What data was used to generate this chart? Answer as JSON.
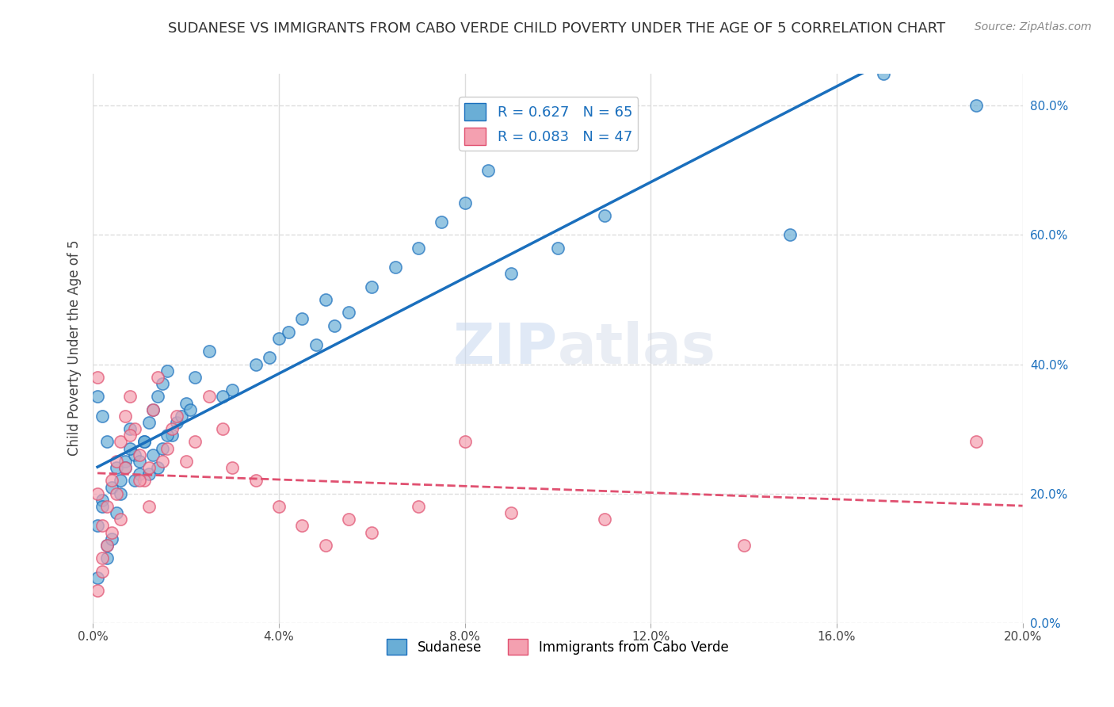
{
  "title": "SUDANESE VS IMMIGRANTS FROM CABO VERDE CHILD POVERTY UNDER THE AGE OF 5 CORRELATION CHART",
  "source": "Source: ZipAtlas.com",
  "ylabel": "Child Poverty Under the Age of 5",
  "xlim": [
    0,
    0.2
  ],
  "ylim": [
    0,
    0.85
  ],
  "xticks": [
    0.0,
    0.04,
    0.08,
    0.12,
    0.16,
    0.2
  ],
  "yticks_right": [
    0.0,
    0.2,
    0.4,
    0.6,
    0.8
  ],
  "sudanese_R": 0.627,
  "sudanese_N": 65,
  "caboverde_R": 0.083,
  "caboverde_N": 47,
  "blue_color": "#6aaed6",
  "pink_color": "#f4a0b0",
  "blue_line_color": "#1a6fbd",
  "pink_line_color": "#e05070",
  "watermark_zip": "ZIP",
  "watermark_atlas": "atlas",
  "background_color": "#ffffff",
  "grid_color": "#dddddd",
  "sudanese_x": [
    0.001,
    0.002,
    0.003,
    0.001,
    0.002,
    0.004,
    0.003,
    0.005,
    0.002,
    0.001,
    0.006,
    0.007,
    0.008,
    0.005,
    0.004,
    0.003,
    0.009,
    0.011,
    0.01,
    0.012,
    0.013,
    0.007,
    0.008,
    0.006,
    0.014,
    0.015,
    0.009,
    0.016,
    0.011,
    0.01,
    0.017,
    0.018,
    0.013,
    0.012,
    0.019,
    0.02,
    0.015,
    0.022,
    0.016,
    0.025,
    0.014,
    0.021,
    0.03,
    0.035,
    0.028,
    0.04,
    0.045,
    0.038,
    0.05,
    0.042,
    0.06,
    0.055,
    0.065,
    0.07,
    0.048,
    0.052,
    0.075,
    0.08,
    0.15,
    0.085,
    0.09,
    0.1,
    0.11,
    0.17,
    0.19
  ],
  "sudanese_y": [
    0.35,
    0.32,
    0.28,
    0.15,
    0.19,
    0.21,
    0.12,
    0.24,
    0.18,
    0.07,
    0.22,
    0.25,
    0.3,
    0.17,
    0.13,
    0.1,
    0.26,
    0.28,
    0.23,
    0.31,
    0.33,
    0.24,
    0.27,
    0.2,
    0.35,
    0.37,
    0.22,
    0.39,
    0.28,
    0.25,
    0.29,
    0.31,
    0.26,
    0.23,
    0.32,
    0.34,
    0.27,
    0.38,
    0.29,
    0.42,
    0.24,
    0.33,
    0.36,
    0.4,
    0.35,
    0.44,
    0.47,
    0.41,
    0.5,
    0.45,
    0.52,
    0.48,
    0.55,
    0.58,
    0.43,
    0.46,
    0.62,
    0.65,
    0.6,
    0.7,
    0.54,
    0.58,
    0.63,
    0.85,
    0.8
  ],
  "caboverde_x": [
    0.001,
    0.002,
    0.001,
    0.003,
    0.002,
    0.001,
    0.004,
    0.003,
    0.005,
    0.002,
    0.006,
    0.004,
    0.007,
    0.008,
    0.005,
    0.009,
    0.01,
    0.006,
    0.011,
    0.012,
    0.013,
    0.008,
    0.014,
    0.007,
    0.015,
    0.016,
    0.01,
    0.017,
    0.012,
    0.018,
    0.02,
    0.022,
    0.025,
    0.028,
    0.03,
    0.035,
    0.04,
    0.045,
    0.05,
    0.055,
    0.06,
    0.07,
    0.08,
    0.09,
    0.11,
    0.14,
    0.19
  ],
  "caboverde_y": [
    0.2,
    0.15,
    0.38,
    0.12,
    0.1,
    0.05,
    0.22,
    0.18,
    0.25,
    0.08,
    0.28,
    0.14,
    0.32,
    0.35,
    0.2,
    0.3,
    0.26,
    0.16,
    0.22,
    0.18,
    0.33,
    0.29,
    0.38,
    0.24,
    0.25,
    0.27,
    0.22,
    0.3,
    0.24,
    0.32,
    0.25,
    0.28,
    0.35,
    0.3,
    0.24,
    0.22,
    0.18,
    0.15,
    0.12,
    0.16,
    0.14,
    0.18,
    0.28,
    0.17,
    0.16,
    0.12,
    0.28
  ]
}
